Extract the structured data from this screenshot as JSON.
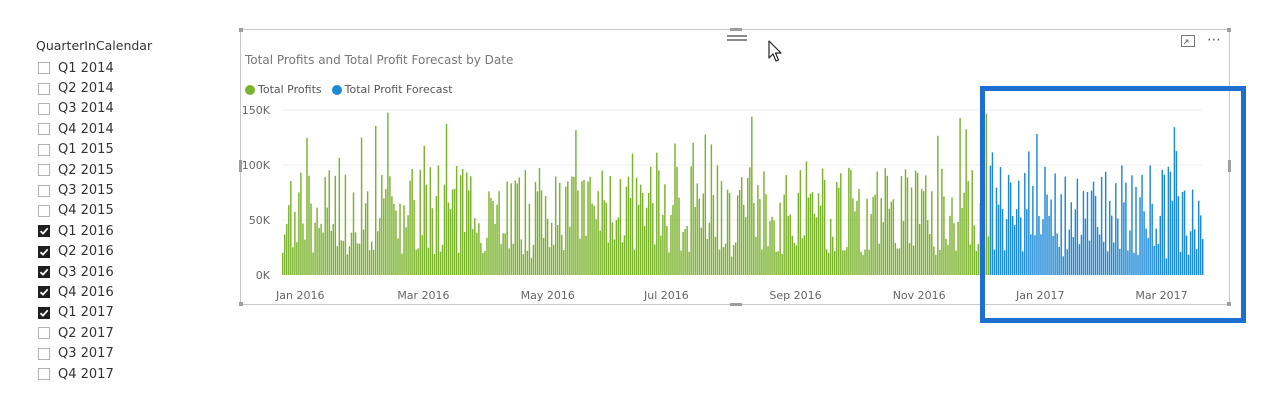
{
  "slicer": {
    "title": "QuarterInCalendar",
    "items": [
      {
        "label": "Q1 2014",
        "checked": false
      },
      {
        "label": "Q2 2014",
        "checked": false
      },
      {
        "label": "Q3 2014",
        "checked": false
      },
      {
        "label": "Q4 2014",
        "checked": false
      },
      {
        "label": "Q1 2015",
        "checked": false
      },
      {
        "label": "Q2 2015",
        "checked": false
      },
      {
        "label": "Q3 2015",
        "checked": false
      },
      {
        "label": "Q4 2015",
        "checked": false
      },
      {
        "label": "Q1 2016",
        "checked": true
      },
      {
        "label": "Q2 2016",
        "checked": true
      },
      {
        "label": "Q3 2016",
        "checked": true
      },
      {
        "label": "Q4 2016",
        "checked": true
      },
      {
        "label": "Q1 2017",
        "checked": true
      },
      {
        "label": "Q2 2017",
        "checked": false
      },
      {
        "label": "Q3 2017",
        "checked": false
      },
      {
        "label": "Q4 2017",
        "checked": false
      }
    ]
  },
  "visual": {
    "title": "Total Profits and Total Profit Forecast by Date",
    "icons": [
      "drag-handle-icon",
      "focus-mode-icon",
      "more-options-icon"
    ]
  },
  "colors": {
    "profits": "#7bb32e",
    "forecast": "#1d8ad6",
    "highlight": "#1f6fd1"
  },
  "chart_data": {
    "type": "bar",
    "title": "Total Profits and Total Profit Forecast by Date",
    "legend_position": "top-left",
    "grid": true,
    "ylim": [
      0,
      150000
    ],
    "y_ticks": [
      "0K",
      "50K",
      "100K",
      "150K"
    ],
    "x_ticks": [
      "Jan 2016",
      "Mar 2016",
      "May 2016",
      "Jul 2016",
      "Sep 2016",
      "Nov 2016",
      "Jan 2017",
      "Mar 2017"
    ],
    "x_range": [
      "2016-01-01",
      "2017-03-31"
    ],
    "forecast_start": "2016-12-16",
    "series": [
      {
        "name": "Total Profits",
        "range": [
          "2016-01-01",
          "2016-12-15"
        ],
        "typical_range": [
          20000,
          100000
        ],
        "max": 148000
      },
      {
        "name": "Total Profit Forecast",
        "range": [
          "2016-12-16",
          "2017-03-31"
        ],
        "typical_range": [
          20000,
          100000
        ],
        "max": 135000
      }
    ]
  }
}
